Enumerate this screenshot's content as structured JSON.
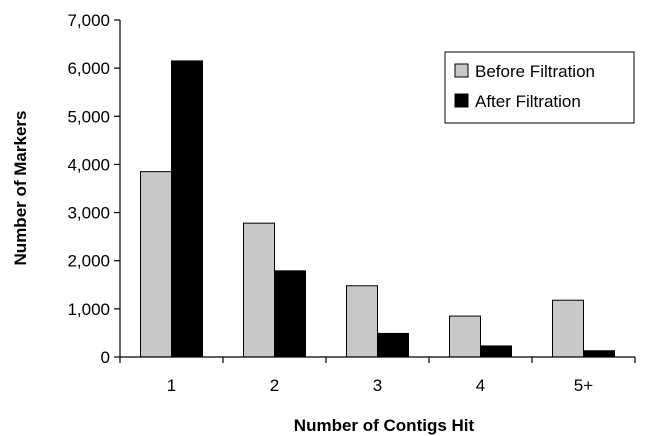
{
  "chart_data": {
    "type": "bar",
    "categories": [
      "1",
      "2",
      "3",
      "4",
      "5+"
    ],
    "series": [
      {
        "name": "Before Filtration",
        "color": "#c8c8c8",
        "values": [
          3850,
          2780,
          1480,
          850,
          1180
        ]
      },
      {
        "name": "After Filtration",
        "color": "#000000",
        "values": [
          6150,
          1790,
          490,
          230,
          130
        ]
      }
    ],
    "title": "",
    "xlabel": "Number of Contigs Hit",
    "ylabel": "Number of Markers",
    "ylim": [
      0,
      7000
    ],
    "yticks": [
      "0",
      "1,000",
      "2,000",
      "3,000",
      "4,000",
      "5,000",
      "6,000",
      "7,000"
    ],
    "grid": false,
    "legend_position": "top-right"
  }
}
